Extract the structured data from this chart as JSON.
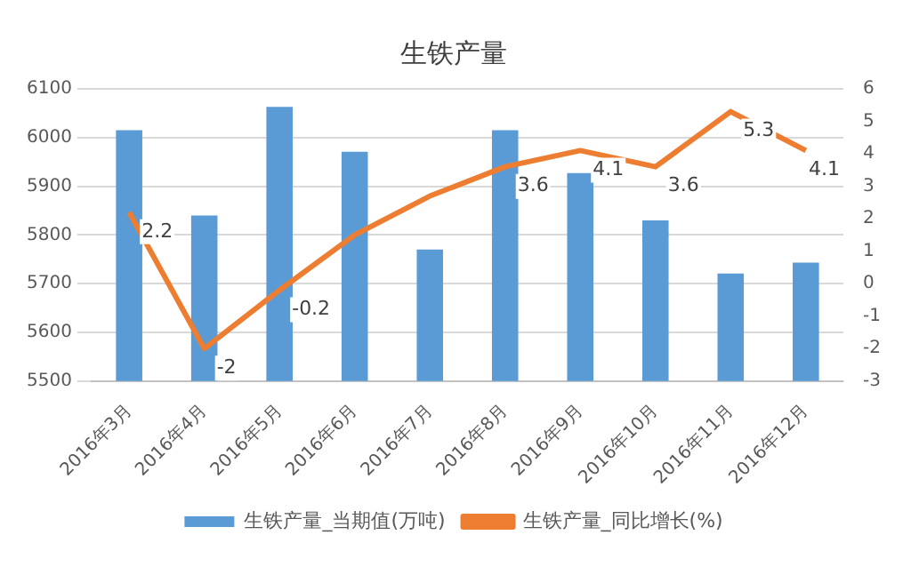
{
  "chart_data": {
    "type": "bar",
    "title": "生铁产量",
    "categories": [
      "2016年3月",
      "2016年4月",
      "2016年5月",
      "2016年6月",
      "2016年7月",
      "2016年8月",
      "2016年9月",
      "2016年10月",
      "2016年11月",
      "2016年12月"
    ],
    "series": [
      {
        "name": "生铁产量_当期值(万吨)",
        "color": "#5b9bd5",
        "values": [
          6015,
          5840,
          6063,
          5971,
          5770,
          6015,
          5927,
          5830,
          5721,
          5743
        ]
      },
      {
        "name": "生铁产量_同比增长(%)",
        "type": "line",
        "axis": "y2",
        "color": "#ed7d31",
        "values": [
          2.2,
          -2,
          -0.2,
          1.5,
          2.7,
          3.6,
          4.1,
          3.6,
          5.3,
          4.1
        ],
        "value_labels": [
          "2.2",
          "-2",
          "-0.2",
          null,
          null,
          "3.6",
          "4.1",
          "3.6",
          "5.3",
          "4.1"
        ]
      }
    ],
    "ylim": [
      5500,
      6100
    ],
    "yticks": [
      5500,
      5600,
      5700,
      5800,
      5900,
      6000,
      6100
    ],
    "y2lim": [
      -3,
      6
    ],
    "y2ticks": [
      -3,
      -2,
      -1,
      0,
      1,
      2,
      3,
      4,
      5,
      6
    ],
    "grid": "y",
    "legend": "bottom",
    "marker": "none"
  }
}
